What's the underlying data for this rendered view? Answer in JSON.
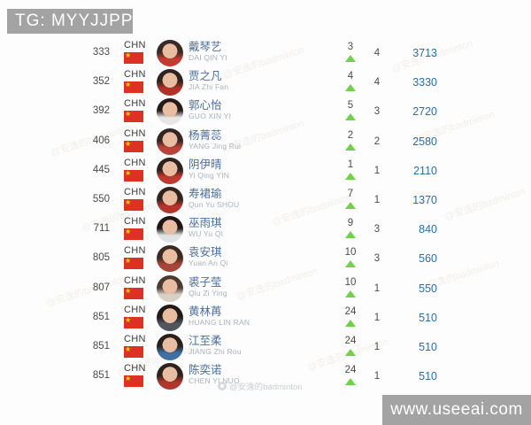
{
  "header": {
    "tag_label": "TG: MYYJJPP"
  },
  "footer": {
    "site_label": "www.useeai.com"
  },
  "watermark": {
    "credit": "@安逸的badminton"
  },
  "colors": {
    "gray_box": "#a3a3a3",
    "flag_red": "#dd3124",
    "name_blue": "#4b6f9f",
    "points_blue": "#2e6da4",
    "arrow_green": "#72d14b"
  },
  "table": {
    "rows": [
      {
        "rank": "333",
        "country": "CHN",
        "name_cn": "戴琴艺",
        "name_en": "DAI QIN YI",
        "change": "3",
        "direction": "up",
        "events": "4",
        "points": "3713",
        "avatar": {
          "hair": "#3a2a26",
          "shirt": "#c23b30"
        }
      },
      {
        "rank": "352",
        "country": "CHN",
        "name_cn": "贾之凡",
        "name_en": "JIA Zhi Fan",
        "change": "4",
        "direction": "up",
        "events": "4",
        "points": "3330",
        "avatar": {
          "hair": "#2e2320",
          "shirt": "#b23028"
        }
      },
      {
        "rank": "392",
        "country": "CHN",
        "name_cn": "郭心怡",
        "name_en": "GUO XIN YI",
        "change": "5",
        "direction": "up",
        "events": "3",
        "points": "2720",
        "avatar": {
          "hair": "#241c1a",
          "shirt": "#e9e7e4"
        }
      },
      {
        "rank": "406",
        "country": "CHN",
        "name_cn": "杨菁蕊",
        "name_en": "YANG Jing Rui",
        "change": "2",
        "direction": "up",
        "events": "2",
        "points": "2580",
        "avatar": {
          "hair": "#332624",
          "shirt": "#b8433a"
        }
      },
      {
        "rank": "445",
        "country": "CHN",
        "name_cn": "阴伊晴",
        "name_en": "Yi Qing YIN",
        "change": "1",
        "direction": "up",
        "events": "1",
        "points": "2110",
        "avatar": {
          "hair": "#2b211f",
          "shirt": "#c0392f"
        }
      },
      {
        "rank": "550",
        "country": "CHN",
        "name_cn": "寿裙瑜",
        "name_en": "Qun Yu SHOU",
        "change": "7",
        "direction": "up",
        "events": "1",
        "points": "1370",
        "avatar": {
          "hair": "#30241f",
          "shirt": "#b5352c"
        }
      },
      {
        "rank": "711",
        "country": "CHN",
        "name_cn": "巫雨琪",
        "name_en": "WU Yu QI",
        "change": "9",
        "direction": "up",
        "events": "3",
        "points": "840",
        "avatar": {
          "hair": "#1d1715",
          "shirt": "#dfe3e6"
        }
      },
      {
        "rank": "805",
        "country": "CHN",
        "name_cn": "袁安琪",
        "name_en": "Yuan An Qi",
        "change": "10",
        "direction": "up",
        "events": "3",
        "points": "560",
        "avatar": {
          "hair": "#3a2b22",
          "shirt": "#a8453a"
        }
      },
      {
        "rank": "807",
        "country": "CHN",
        "name_cn": "裘子莹",
        "name_en": "Qiu Zi Ying",
        "change": "10",
        "direction": "up",
        "events": "1",
        "points": "550",
        "avatar": {
          "hair": "#4a3a30",
          "shirt": "#d8cfc5"
        }
      },
      {
        "rank": "851",
        "country": "CHN",
        "name_cn": "黄林苒",
        "name_en": "HUANG LIN RAN",
        "change": "24",
        "direction": "up",
        "events": "1",
        "points": "510",
        "avatar": {
          "hair": "#211a18",
          "shirt": "#50565c"
        }
      },
      {
        "rank": "851",
        "country": "CHN",
        "name_cn": "江至柔",
        "name_en": "JIANG Zhi Rou",
        "change": "24",
        "direction": "up",
        "events": "1",
        "points": "510",
        "avatar": {
          "hair": "#27201d",
          "shirt": "#3f6fa5"
        }
      },
      {
        "rank": "851",
        "country": "CHN",
        "name_cn": "陈奕诺",
        "name_en": "CHEN YI NUO",
        "change": "24",
        "direction": "up",
        "events": "1",
        "points": "510",
        "avatar": {
          "hair": "#2e2220",
          "shirt": "#b0362e"
        }
      }
    ]
  }
}
